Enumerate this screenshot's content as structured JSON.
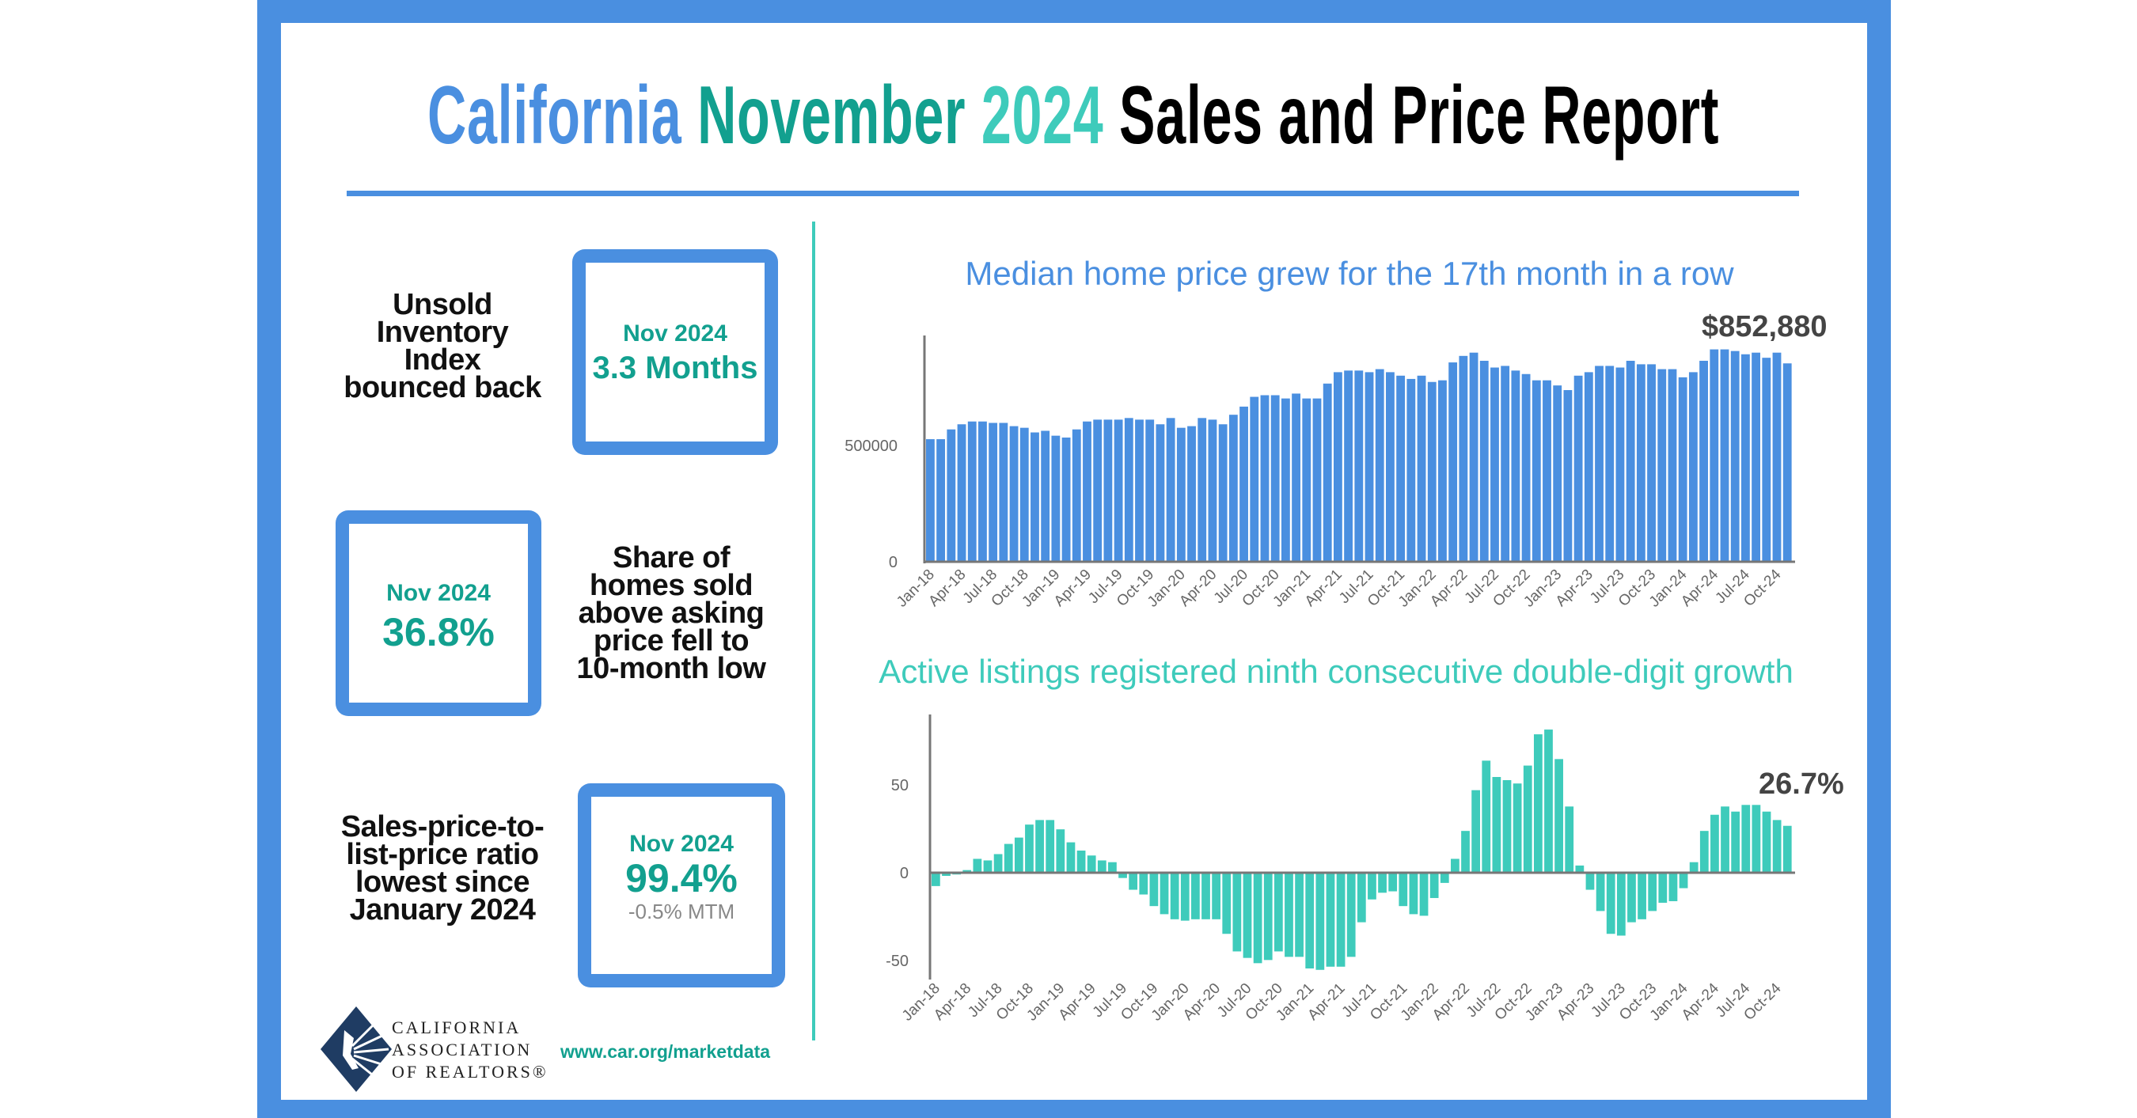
{
  "title": {
    "part1": "California",
    "part2": "November",
    "part3": "2024",
    "part4": "Sales and Price Report"
  },
  "colors": {
    "blue": "#4a8fe0",
    "teal_dark": "#12a08f",
    "teal_light": "#3ecbbb",
    "text": "#111111",
    "callout": "#444444"
  },
  "metrics": [
    {
      "description": [
        "Unsold",
        "Inventory",
        "Index",
        "bounced back"
      ],
      "period": "Nov 2024",
      "value": "3.3 Months"
    },
    {
      "description": [
        "Share of",
        "homes sold",
        "above asking",
        "price fell to",
        "10-month low"
      ],
      "period": "Nov 2024",
      "value": "36.8%"
    },
    {
      "description": [
        "Sales-price-to-",
        "list-price ratio",
        "lowest since",
        "January 2024"
      ],
      "period": "Nov 2024",
      "value": "99.4%",
      "change": "-0.5% MTM"
    }
  ],
  "footer": {
    "logo_lines": [
      "CALIFORNIA",
      "ASSOCIATION",
      "OF REALTORS®"
    ],
    "url": "www.car.org/marketdata"
  },
  "chart_data": [
    {
      "type": "bar",
      "title": "Median home price grew for the 17th month in a row",
      "callout": "$852,880",
      "color": "#4a8fe0",
      "ylim": [
        0,
        970000
      ],
      "yticks": [
        {
          "value": 0,
          "label": "0"
        },
        {
          "value": 500000,
          "label": "500000"
        }
      ],
      "grid": false,
      "categories": [
        "Jan-18",
        "Feb-18",
        "Mar-18",
        "Apr-18",
        "May-18",
        "Jun-18",
        "Jul-18",
        "Aug-18",
        "Sep-18",
        "Oct-18",
        "Nov-18",
        "Dec-18",
        "Jan-19",
        "Feb-19",
        "Mar-19",
        "Apr-19",
        "May-19",
        "Jun-19",
        "Jul-19",
        "Aug-19",
        "Sep-19",
        "Oct-19",
        "Nov-19",
        "Dec-19",
        "Jan-20",
        "Feb-20",
        "Mar-20",
        "Apr-20",
        "May-20",
        "Jun-20",
        "Jul-20",
        "Aug-20",
        "Sep-20",
        "Oct-20",
        "Nov-20",
        "Dec-20",
        "Jan-21",
        "Feb-21",
        "Mar-21",
        "Apr-21",
        "May-21",
        "Jun-21",
        "Jul-21",
        "Aug-21",
        "Sep-21",
        "Oct-21",
        "Nov-21",
        "Dec-21",
        "Jan-22",
        "Feb-22",
        "Mar-22",
        "Apr-22",
        "May-22",
        "Jun-22",
        "Jul-22",
        "Aug-22",
        "Sep-22",
        "Oct-22",
        "Nov-22",
        "Dec-22",
        "Jan-23",
        "Feb-23",
        "Mar-23",
        "Apr-23",
        "May-23",
        "Jun-23",
        "Jul-23",
        "Aug-23",
        "Sep-23",
        "Oct-23",
        "Nov-23",
        "Dec-23",
        "Jan-24",
        "Feb-24",
        "Mar-24",
        "Apr-24",
        "May-24",
        "Jun-24",
        "Jul-24",
        "Aug-24",
        "Sep-24",
        "Oct-24",
        "Nov-24"
      ],
      "xtick_labels": [
        "Jan-18",
        "Apr-18",
        "Jul-18",
        "Oct-18",
        "Jan-19",
        "Apr-19",
        "Jul-19",
        "Oct-19",
        "Jan-20",
        "Apr-20",
        "Jul-20",
        "Oct-20",
        "Jan-21",
        "Apr-21",
        "Jul-21",
        "Oct-21",
        "Jan-22",
        "Apr-22",
        "Jul-22",
        "Oct-22",
        "Jan-23",
        "Apr-23",
        "Jul-23",
        "Oct-23",
        "Jan-24",
        "Apr-24",
        "Jul-24",
        "Oct-24"
      ],
      "values": [
        527000,
        527000,
        569000,
        591000,
        603000,
        603000,
        597000,
        597000,
        583000,
        576000,
        556000,
        563000,
        542000,
        534000,
        569000,
        603000,
        611000,
        611000,
        611000,
        618000,
        611000,
        611000,
        591000,
        618000,
        576000,
        583000,
        618000,
        611000,
        591000,
        632000,
        667000,
        709000,
        716000,
        716000,
        702000,
        723000,
        702000,
        702000,
        766000,
        815000,
        822000,
        822000,
        815000,
        828000,
        815000,
        800000,
        786000,
        800000,
        773000,
        780000,
        857000,
        885000,
        899000,
        864000,
        835000,
        842000,
        822000,
        807000,
        780000,
        780000,
        758000,
        738000,
        800000,
        815000,
        842000,
        842000,
        835000,
        864000,
        849000,
        849000,
        828000,
        828000,
        793000,
        815000,
        864000,
        913000,
        913000,
        906000,
        892000,
        899000,
        877000,
        899000,
        852880
      ]
    },
    {
      "type": "bar",
      "title": "Active listings registered ninth consecutive double-digit growth",
      "callout": "26.7%",
      "color": "#3ecbbb",
      "ylim": [
        -57,
        85
      ],
      "yticks": [
        {
          "value": 50,
          "label": "50"
        },
        {
          "value": 0,
          "label": "0"
        },
        {
          "value": -50,
          "label": "-50"
        }
      ],
      "grid": false,
      "xtick_labels": [
        "Jan-18",
        "Apr-18",
        "Jul-18",
        "Oct-18",
        "Jan-19",
        "Apr-19",
        "Jul-19",
        "Oct-19",
        "Jan-20",
        "Apr-20",
        "Jul-20",
        "Oct-20",
        "Jan-21",
        "Apr-21",
        "Jul-21",
        "Oct-21",
        "Jan-22",
        "Apr-22",
        "Jul-22",
        "Oct-22",
        "Jan-23",
        "Apr-23",
        "Jul-23",
        "Oct-23",
        "Jan-24",
        "Apr-24",
        "Jul-24",
        "Oct-24"
      ],
      "values": [
        -7.6,
        -1.8,
        -1,
        1.5,
        7.9,
        7,
        10.6,
        16.4,
        20,
        27.4,
        30,
        30,
        24.7,
        17.3,
        12.6,
        9.8,
        7,
        6,
        -3,
        -9.7,
        -12.4,
        -19,
        -23.6,
        -26.5,
        -27.3,
        -26.5,
        -26.5,
        -26.5,
        -34.8,
        -44.8,
        -48.5,
        -51.5,
        -49.7,
        -44.8,
        -47.9,
        -47.9,
        -54.5,
        -55.3,
        -53.5,
        -53.5,
        -47.9,
        -28.2,
        -15.2,
        -11.4,
        -10.6,
        -19,
        -23.6,
        -24.5,
        -14.4,
        -5.8,
        7.9,
        23.8,
        47,
        63.8,
        54.5,
        52.7,
        50.8,
        61,
        78.8,
        81.5,
        64.7,
        37.7,
        4.1,
        -9.7,
        -21.8,
        -34.8,
        -35.8,
        -28.2,
        -26.5,
        -21.8,
        -17.1,
        -16.2,
        -8.8,
        6,
        23.8,
        33,
        37.7,
        34.8,
        38.6,
        38.6,
        34.8,
        30,
        26.7
      ]
    }
  ]
}
